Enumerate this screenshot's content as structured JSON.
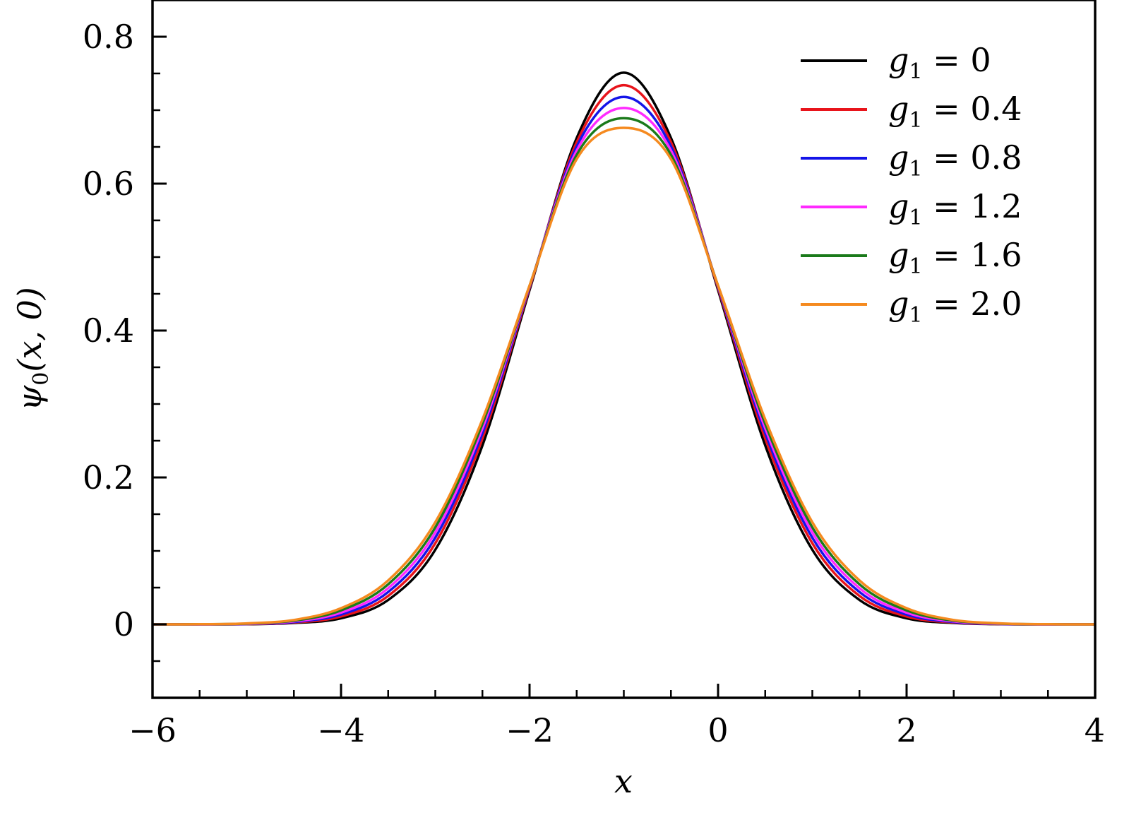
{
  "chart_data": {
    "type": "line",
    "title": "",
    "xlabel": "x",
    "ylabel": "ψ0(x, 0)",
    "xlim": [
      -6,
      4
    ],
    "ylim": [
      -0.1,
      0.85
    ],
    "grid": false,
    "legend_placement": "top-right",
    "x_ticks": [
      -6,
      -4,
      -2,
      0,
      2,
      4
    ],
    "x_tick_labels": [
      "−6",
      "−4",
      "−2",
      "0",
      "2",
      "4"
    ],
    "y_ticks": [
      0,
      0.2,
      0.4,
      0.6,
      0.8
    ],
    "y_tick_labels": [
      "0",
      "0.2",
      "0.4",
      "0.6",
      "0.8"
    ],
    "x_minor_step": 0.5,
    "y_minor_step": 0.05,
    "x": [
      -6,
      -5.5,
      -5,
      -4.5,
      -4,
      -3.5,
      -3,
      -2.5,
      -2,
      -1.5,
      -1,
      -0.5,
      0,
      0.5,
      1,
      1.5,
      2,
      2.5,
      3,
      3.5,
      4
    ],
    "series": [
      {
        "name": "g1 = 0",
        "color": "#000000",
        "values": [
          0.0,
          0.0,
          0.0002,
          0.0019,
          0.0083,
          0.0332,
          0.1015,
          0.2436,
          0.455,
          0.6622,
          0.7511,
          0.6622,
          0.455,
          0.2436,
          0.1015,
          0.0332,
          0.0083,
          0.0019,
          0.0002,
          0.0,
          0.0
        ]
      },
      {
        "name": "g1 = 0.4",
        "color": "#e8141b",
        "values": [
          0.0,
          0.0001,
          0.0004,
          0.0025,
          0.0108,
          0.0387,
          0.1104,
          0.253,
          0.4577,
          0.6564,
          0.734,
          0.6564,
          0.4577,
          0.253,
          0.1104,
          0.0387,
          0.0108,
          0.0025,
          0.0004,
          0.0001,
          0.0
        ]
      },
      {
        "name": "g1 = 0.8",
        "color": "#1414e8",
        "values": [
          0.0,
          0.0001,
          0.0005,
          0.0032,
          0.0134,
          0.044,
          0.118,
          0.2603,
          0.4593,
          0.6506,
          0.718,
          0.6506,
          0.4593,
          0.2603,
          0.118,
          0.044,
          0.0134,
          0.0032,
          0.0005,
          0.0001,
          0.0
        ]
      },
      {
        "name": "g1 = 1.2",
        "color": "#ff2aff",
        "values": [
          0.0,
          0.0001,
          0.0007,
          0.004,
          0.016,
          0.0492,
          0.1252,
          0.2668,
          0.4604,
          0.645,
          0.703,
          0.645,
          0.4604,
          0.2668,
          0.1252,
          0.0492,
          0.016,
          0.004,
          0.0007,
          0.0001,
          0.0
        ]
      },
      {
        "name": "g1 = 1.6",
        "color": "#1a7a1a",
        "values": [
          0.0,
          0.0002,
          0.001,
          0.005,
          0.019,
          0.0545,
          0.132,
          0.273,
          0.461,
          0.6392,
          0.689,
          0.6392,
          0.461,
          0.273,
          0.132,
          0.0545,
          0.019,
          0.005,
          0.001,
          0.0002,
          0.0
        ]
      },
      {
        "name": "g1 = 2.0",
        "color": "#f58a1f",
        "values": [
          0.0,
          0.0002,
          0.0013,
          0.006,
          0.022,
          0.0598,
          0.139,
          0.279,
          0.4612,
          0.6335,
          0.676,
          0.6335,
          0.4612,
          0.279,
          0.139,
          0.0598,
          0.022,
          0.006,
          0.0013,
          0.0002,
          0.0
        ]
      }
    ],
    "legend": [
      {
        "var": "g",
        "sub": "1",
        "eq": " = 0"
      },
      {
        "var": "g",
        "sub": "1",
        "eq": " = 0.4"
      },
      {
        "var": "g",
        "sub": "1",
        "eq": " = 0.8"
      },
      {
        "var": "g",
        "sub": "1",
        "eq": " = 1.2"
      },
      {
        "var": "g",
        "sub": "1",
        "eq": " = 1.6"
      },
      {
        "var": "g",
        "sub": "1",
        "eq": " = 2.0"
      }
    ],
    "ylabel_parts": {
      "var": "ψ",
      "sub": "0",
      "rest": "(x, 0)"
    }
  }
}
